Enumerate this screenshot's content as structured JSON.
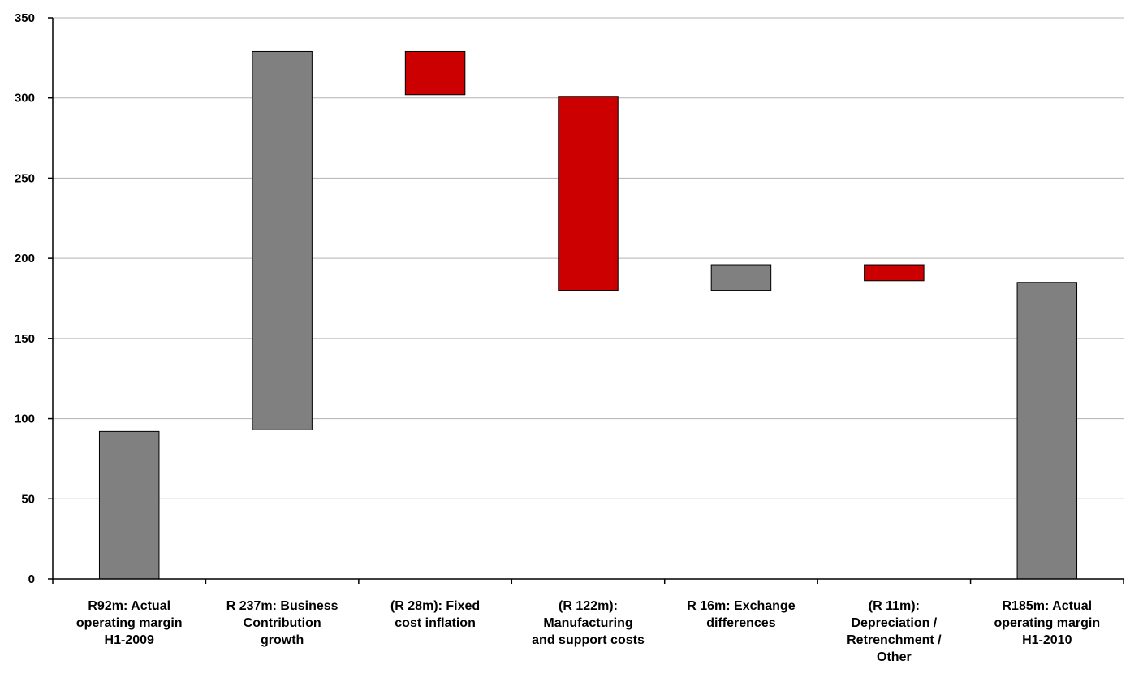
{
  "chart_data": {
    "type": "bar",
    "subtype": "waterfall",
    "categories": [
      [
        "R92m: Actual",
        "operating margin",
        "H1-2009"
      ],
      [
        "R 237m: Business",
        "Contribution",
        "growth"
      ],
      [
        "(R 28m): Fixed",
        "cost inflation"
      ],
      [
        "(R 122m):",
        "Manufacturing",
        "and support costs"
      ],
      [
        "R 16m: Exchange",
        "differences"
      ],
      [
        "(R 11m):",
        "Depreciation /",
        "Retrenchment /",
        "Other"
      ],
      [
        "R185m: Actual",
        "operating margin",
        "H1-2010"
      ]
    ],
    "bars": [
      {
        "base": 0,
        "top": 92,
        "color": "#808080"
      },
      {
        "base": 93,
        "top": 329,
        "color": "#808080"
      },
      {
        "base": 302,
        "top": 329,
        "color": "#cc0000"
      },
      {
        "base": 180,
        "top": 301,
        "color": "#cc0000"
      },
      {
        "base": 180,
        "top": 196,
        "color": "#808080"
      },
      {
        "base": 186,
        "top": 196,
        "color": "#cc0000"
      },
      {
        "base": 0,
        "top": 185,
        "color": "#808080"
      }
    ],
    "yticks": [
      0,
      50,
      100,
      150,
      200,
      250,
      300,
      350
    ],
    "ylim": [
      0,
      350
    ],
    "grid": true,
    "title": "",
    "xlabel": "",
    "ylabel": ""
  }
}
